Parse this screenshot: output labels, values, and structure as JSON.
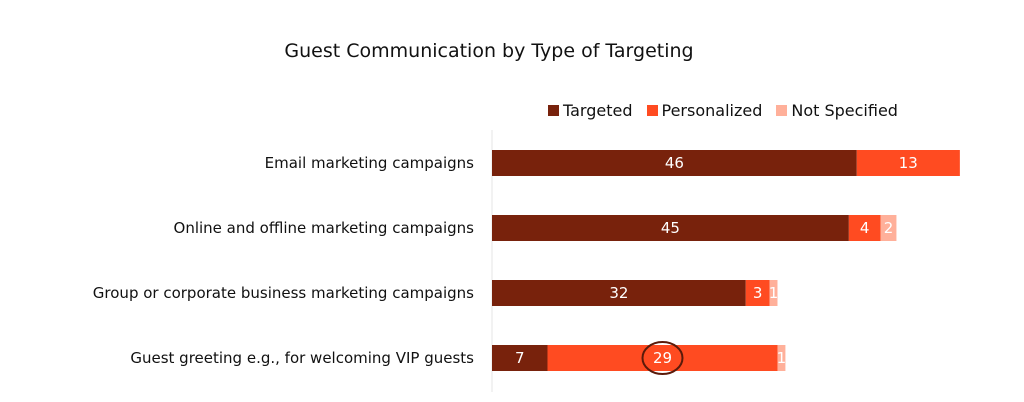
{
  "chart_data": {
    "type": "bar",
    "orientation": "horizontal",
    "stacked": true,
    "title": "Guest Communication by Type of Targeting",
    "categories": [
      "Email marketing campaigns",
      "Online and offline marketing campaigns",
      "Group or corporate business marketing campaigns",
      "Guest greeting e.g., for welcoming VIP guests"
    ],
    "series": [
      {
        "name": "Targeted",
        "values": [
          46,
          45,
          32,
          7
        ],
        "color": "#78220c"
      },
      {
        "name": "Personalized",
        "values": [
          13,
          4,
          3,
          29
        ],
        "color": "#ff4b21"
      },
      {
        "name": "Not Specified",
        "values": [
          null,
          2,
          1,
          1
        ],
        "color": "#ffb09a"
      }
    ],
    "highlight": {
      "category": "Guest greeting e.g., for welcoming VIP guests",
      "series": "Personalized",
      "style": "circle"
    },
    "legend": "top",
    "grid": false
  }
}
